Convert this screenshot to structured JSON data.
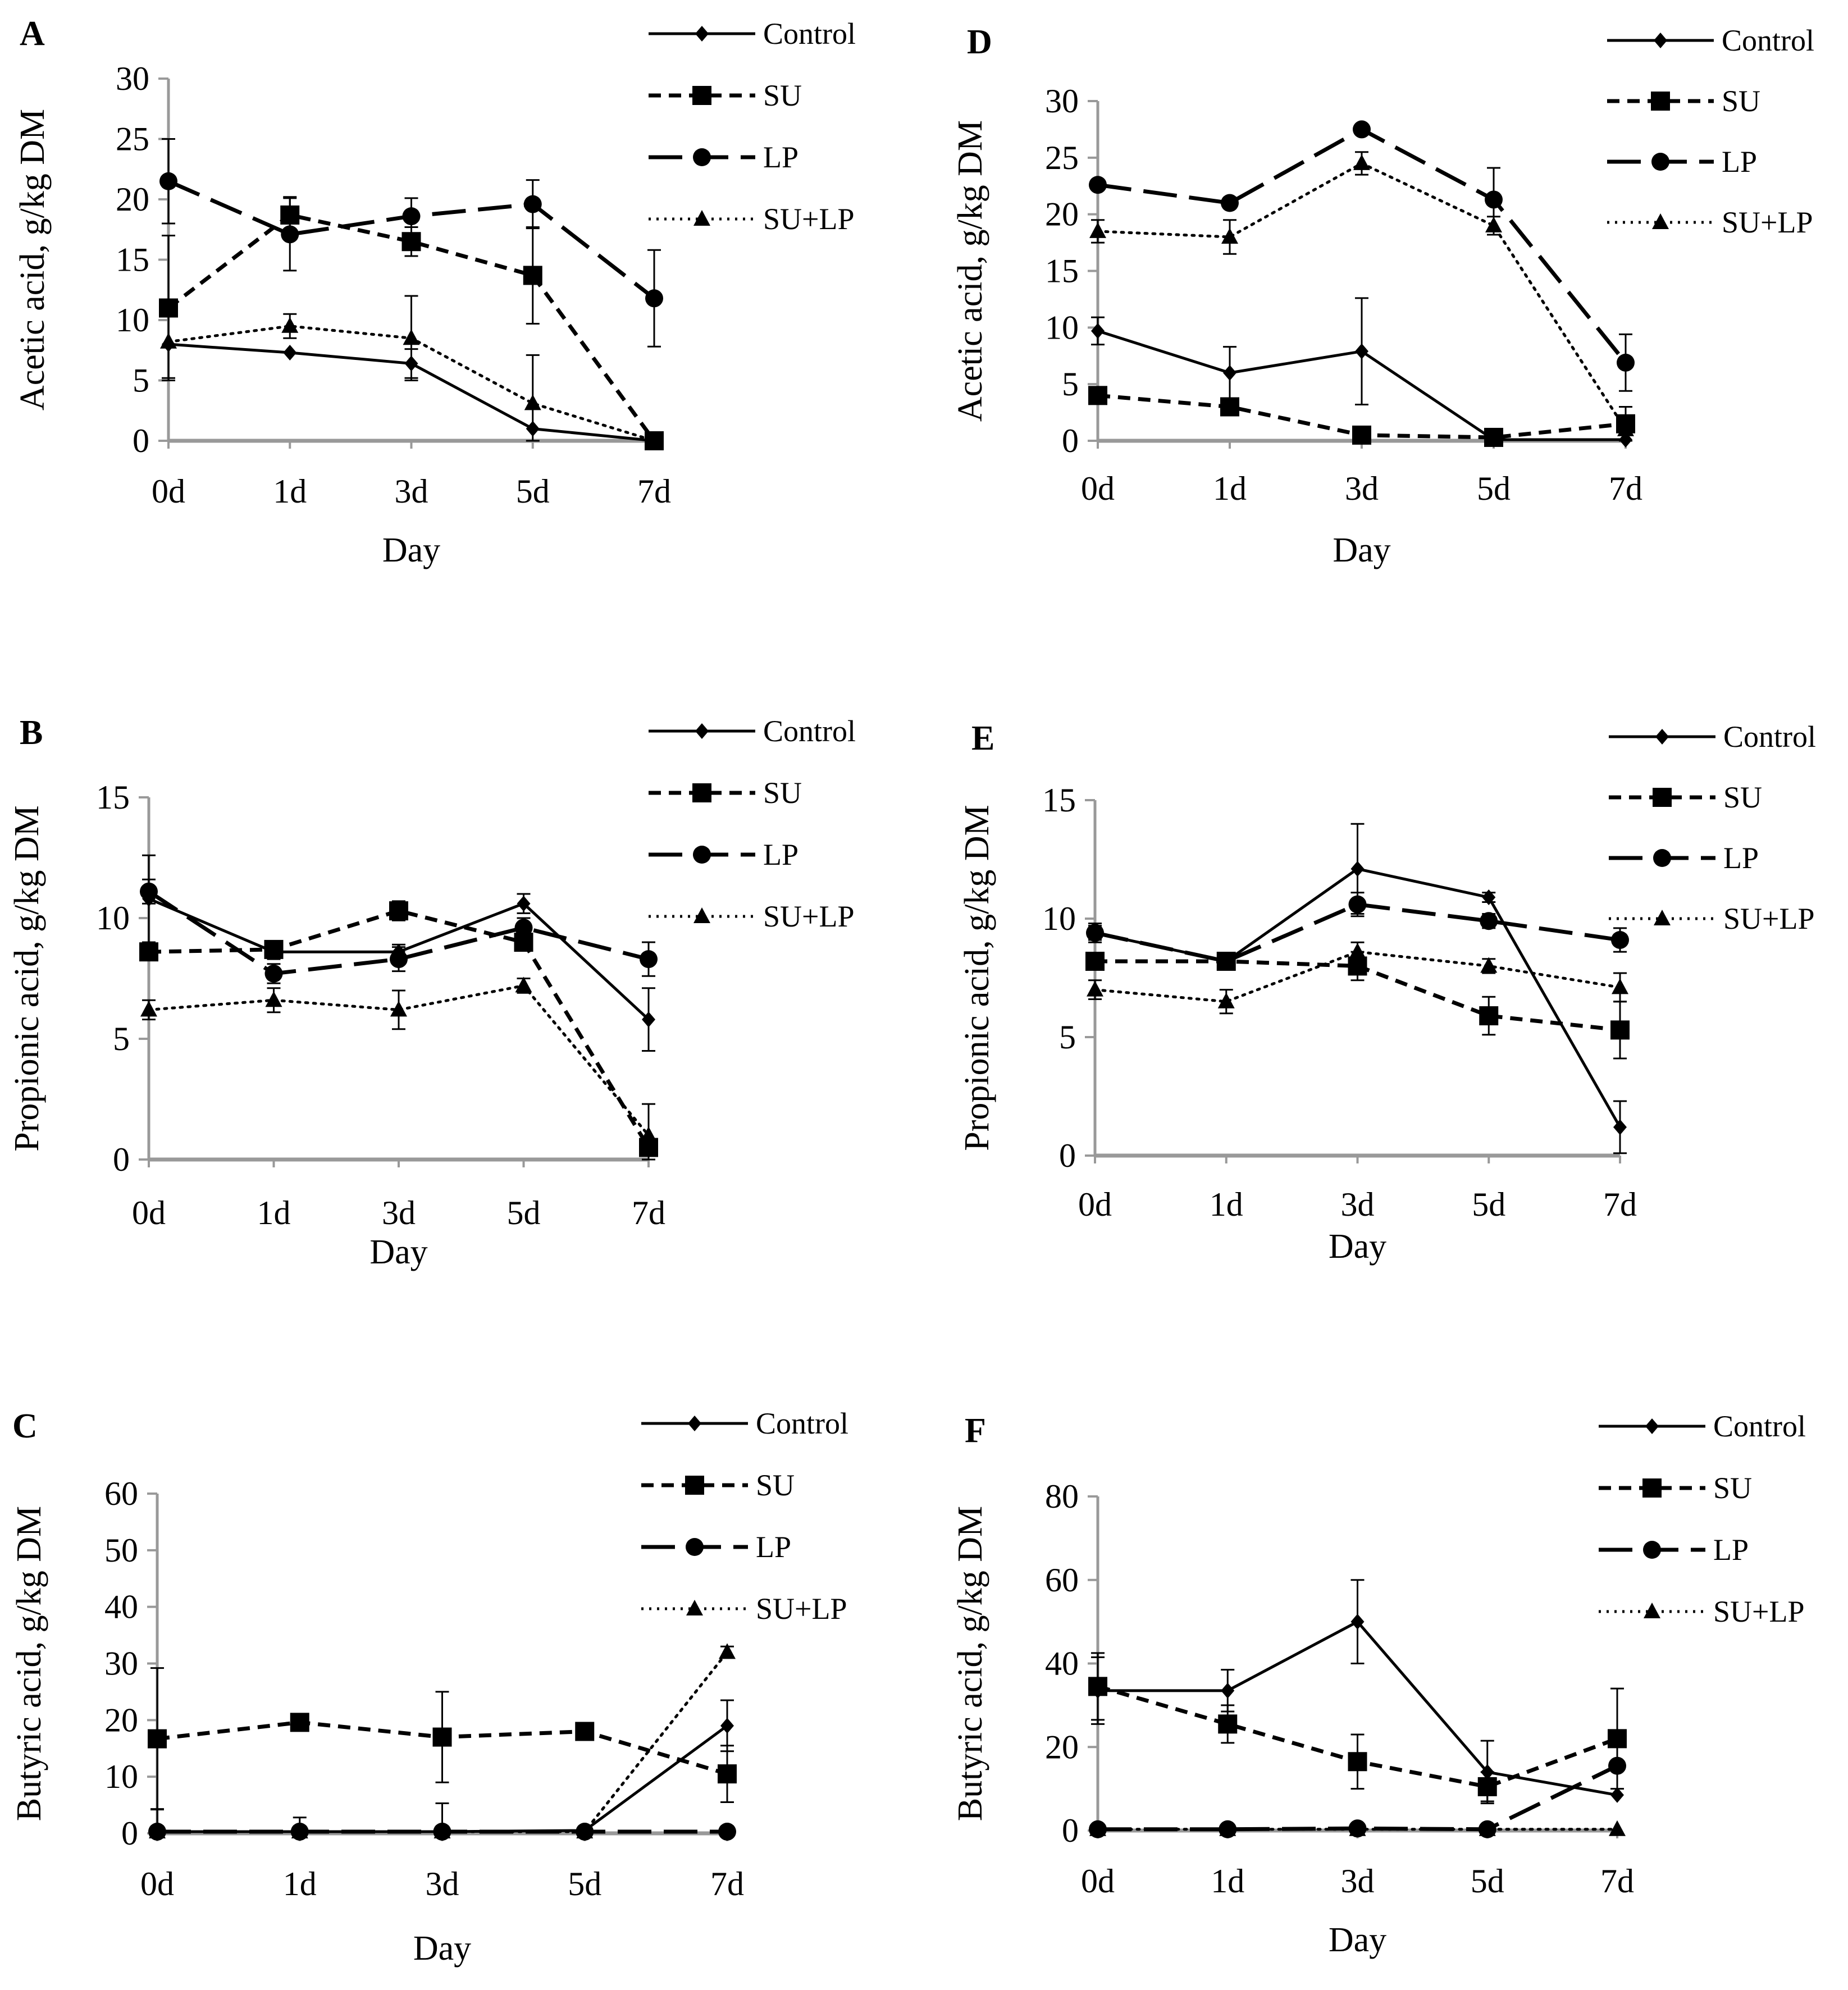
{
  "chart_data": [
    {
      "id": "A",
      "type": "line",
      "letter": "A",
      "ylabel": "Acetic acid, g/kg DM",
      "xlabel": "Day",
      "categories": [
        "0d",
        "1d",
        "3d",
        "5d",
        "7d"
      ],
      "ylim": [
        0,
        30
      ],
      "yticks": [
        0,
        5,
        10,
        15,
        20,
        25,
        30
      ],
      "legend_position": "top-right",
      "series": [
        {
          "name": "Control",
          "values": [
            8,
            7.3,
            6.4,
            1.0,
            0
          ],
          "errors": [
            0,
            0,
            1.2,
            0,
            0
          ]
        },
        {
          "name": "SU",
          "values": [
            11,
            18.7,
            16.5,
            13.7,
            0
          ],
          "errors": [
            6,
            1.5,
            1.2,
            4.0,
            0
          ]
        },
        {
          "name": "LP",
          "values": [
            21.5,
            17.1,
            18.6,
            19.6,
            11.8
          ],
          "errors": [
            3.5,
            3.0,
            1.5,
            2.0,
            4.0
          ]
        },
        {
          "name": "SU+LP",
          "values": [
            8.2,
            9.5,
            8.5,
            3.1,
            0
          ],
          "errors": [
            3.0,
            1.0,
            3.5,
            4.0,
            0
          ]
        }
      ]
    },
    {
      "id": "D",
      "type": "line",
      "letter": "D",
      "ylabel": "Acetic acid, g/kg DM",
      "xlabel": "Day",
      "categories": [
        "0d",
        "1d",
        "3d",
        "5d",
        "7d"
      ],
      "ylim": [
        0,
        30
      ],
      "yticks": [
        0,
        5,
        10,
        15,
        20,
        25,
        30
      ],
      "legend_position": "top-right",
      "series": [
        {
          "name": "Control",
          "values": [
            9.7,
            6.0,
            7.9,
            0.1,
            0.1
          ],
          "errors": [
            1.2,
            2.3,
            4.7,
            0,
            0
          ]
        },
        {
          "name": "SU",
          "values": [
            4.0,
            3.0,
            0.5,
            0.3,
            1.5
          ],
          "errors": [
            0,
            0,
            0,
            0,
            0
          ]
        },
        {
          "name": "LP",
          "values": [
            22.6,
            21.0,
            27.5,
            21.3,
            6.9
          ],
          "errors": [
            0,
            0,
            0,
            2.8,
            2.5
          ]
        },
        {
          "name": "SU+LP",
          "values": [
            18.5,
            18.0,
            24.5,
            19.0,
            1.0
          ],
          "errors": [
            1.0,
            1.5,
            1.0,
            0.8,
            2.0
          ]
        }
      ]
    },
    {
      "id": "B",
      "type": "line",
      "letter": "B",
      "ylabel": "Propionic acid, g/kg DM",
      "xlabel": "Day",
      "categories": [
        "0d",
        "1d",
        "3d",
        "5d",
        "7d"
      ],
      "ylim": [
        0,
        15
      ],
      "yticks": [
        0,
        5,
        10,
        15
      ],
      "legend_position": "top-right",
      "series": [
        {
          "name": "Control",
          "values": [
            10.8,
            8.6,
            8.6,
            10.6,
            5.8
          ],
          "errors": [
            1.8,
            0.3,
            0.3,
            0.4,
            1.3
          ]
        },
        {
          "name": "SU",
          "values": [
            8.6,
            8.7,
            10.3,
            9.0,
            0.5
          ],
          "errors": [
            0.3,
            0.3,
            0.4,
            0.3,
            0.3
          ]
        },
        {
          "name": "LP",
          "values": [
            11.1,
            7.7,
            8.3,
            9.6,
            8.3
          ],
          "errors": [
            0.5,
            0.4,
            0.5,
            0.4,
            0.7
          ]
        },
        {
          "name": "SU+LP",
          "values": [
            6.2,
            6.6,
            6.2,
            7.2,
            1.0
          ],
          "errors": [
            0.4,
            0.5,
            0.8,
            0.3,
            1.3
          ]
        }
      ]
    },
    {
      "id": "E",
      "type": "line",
      "letter": "E",
      "ylabel": "Propionic acid, g/kg DM",
      "xlabel": "Day",
      "categories": [
        "0d",
        "1d",
        "3d",
        "5d",
        "7d"
      ],
      "ylim": [
        0,
        15
      ],
      "yticks": [
        0,
        5,
        10,
        15
      ],
      "legend_position": "top-right",
      "series": [
        {
          "name": "Control",
          "values": [
            9.4,
            8.2,
            12.1,
            10.9,
            1.2
          ],
          "errors": [
            0.4,
            0.3,
            1.9,
            0.2,
            1.1
          ]
        },
        {
          "name": "SU",
          "values": [
            8.2,
            8.2,
            8.0,
            5.9,
            5.3
          ],
          "errors": [
            0.3,
            0.3,
            0.6,
            0.8,
            1.2
          ]
        },
        {
          "name": "LP",
          "values": [
            9.4,
            8.2,
            10.6,
            9.9,
            9.1
          ],
          "errors": [
            0.3,
            0.3,
            0.5,
            0.3,
            0.5
          ]
        },
        {
          "name": "SU+LP",
          "values": [
            7.0,
            6.5,
            8.6,
            8.0,
            7.1
          ],
          "errors": [
            0.4,
            0.5,
            0.4,
            0.3,
            0.6
          ]
        }
      ]
    },
    {
      "id": "C",
      "type": "line",
      "letter": "C",
      "ylabel": "Butyric acid, g/kg DM",
      "xlabel": "Day",
      "categories": [
        "0d",
        "1d",
        "3d",
        "5d",
        "7d"
      ],
      "ylim": [
        0,
        60
      ],
      "yticks": [
        0,
        10,
        20,
        30,
        40,
        50,
        60
      ],
      "legend_position": "top-right",
      "series": [
        {
          "name": "Control",
          "values": [
            0.3,
            0.3,
            0.3,
            0.5,
            19.0
          ],
          "errors": [
            0,
            2.5,
            5.0,
            0,
            4.5
          ]
        },
        {
          "name": "SU",
          "values": [
            16.7,
            19.6,
            17.0,
            18.0,
            10.5
          ],
          "errors": [
            12.5,
            1.0,
            8.0,
            1.0,
            5.0
          ]
        },
        {
          "name": "LP",
          "values": [
            0.3,
            0.3,
            0.3,
            0.3,
            0.3
          ],
          "errors": [
            0,
            0,
            0,
            0,
            0
          ]
        },
        {
          "name": "SU+LP",
          "values": [
            0.3,
            0.3,
            0.3,
            0.3,
            32.0
          ],
          "errors": [
            4.0,
            0,
            0,
            0,
            1.0
          ]
        }
      ]
    },
    {
      "id": "F",
      "type": "line",
      "letter": "F",
      "ylabel": "Butyric acid, g/kg DM",
      "xlabel": "Day",
      "categories": [
        "0d",
        "1d",
        "3d",
        "5d",
        "7d"
      ],
      "ylim": [
        0,
        80
      ],
      "yticks": [
        0,
        20,
        40,
        60,
        80
      ],
      "legend_position": "top-right",
      "series": [
        {
          "name": "Control",
          "values": [
            33.5,
            33.5,
            50.0,
            14.0,
            8.5
          ],
          "errors": [
            8.0,
            5.0,
            10.0,
            7.5,
            0
          ]
        },
        {
          "name": "SU",
          "values": [
            34.5,
            25.5,
            16.5,
            10.5,
            22.0
          ],
          "errors": [
            8.0,
            4.5,
            6.5,
            3.5,
            12.0
          ]
        },
        {
          "name": "LP",
          "values": [
            0.3,
            0.3,
            0.5,
            0.3,
            15.5
          ],
          "errors": [
            0,
            0,
            0,
            0,
            0
          ]
        },
        {
          "name": "SU+LP",
          "values": [
            0.3,
            0.3,
            0.3,
            0.3,
            0.3
          ],
          "errors": [
            0,
            0,
            0,
            0,
            0
          ]
        }
      ]
    }
  ]
}
